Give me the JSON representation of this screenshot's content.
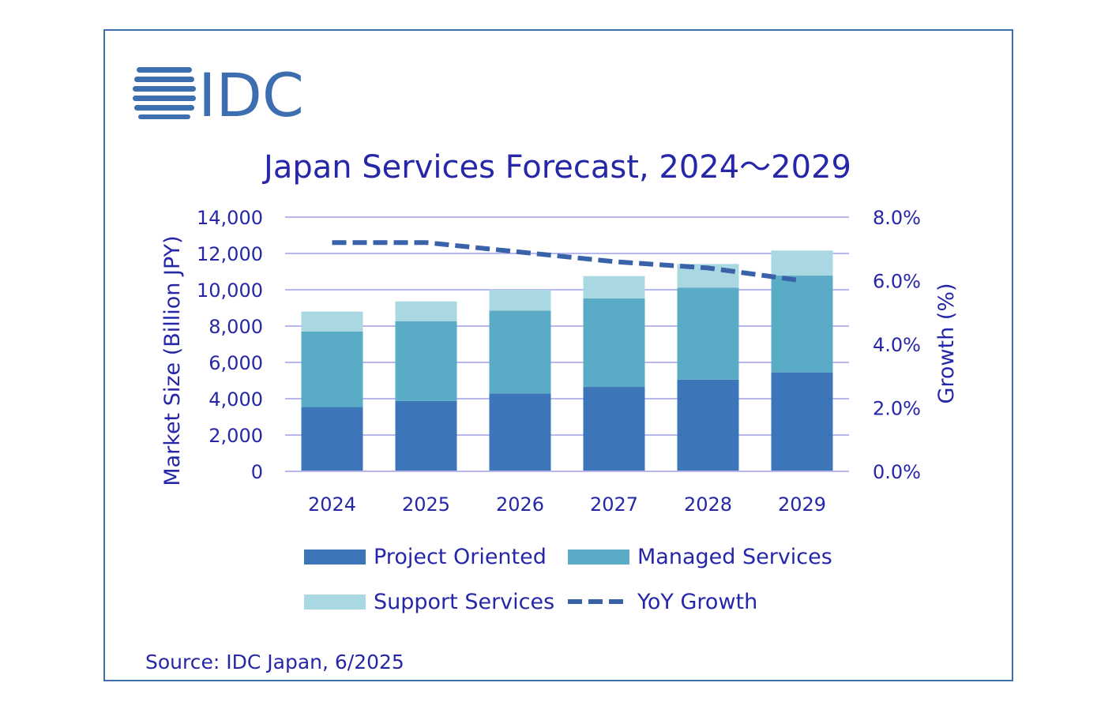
{
  "logo": {
    "text": "IDC"
  },
  "source": "Source: IDC Japan, 6/2025",
  "colors": {
    "project": "#3d76b8",
    "managed": "#5aabc6",
    "support": "#a9d8e2",
    "growth": "#3a62a8",
    "grid": "#b8b8ec",
    "text": "#2626a8",
    "frame": "#3d6fb0"
  },
  "chart_data": {
    "type": "bar",
    "stacked": true,
    "title": "Japan Services Forecast, 2024～2029",
    "xlabel": "",
    "ylabel": "Market Size (Billion JPY)",
    "y2label": "Growth (%)",
    "categories": [
      "2024",
      "2025",
      "2026",
      "2027",
      "2028",
      "2029"
    ],
    "ylim": [
      0,
      14000
    ],
    "y2lim": [
      0,
      8
    ],
    "yticks": [
      0,
      2000,
      4000,
      6000,
      8000,
      10000,
      12000,
      14000
    ],
    "ytick_labels": [
      "0",
      "2,000",
      "4,000",
      "6,000",
      "8,000",
      "10,000",
      "12,000",
      "14,000"
    ],
    "y2ticks": [
      0,
      2,
      4,
      6,
      8
    ],
    "y2tick_labels": [
      "0.0%",
      "2.0%",
      "4.0%",
      "6.0%",
      "8.0%"
    ],
    "grid": true,
    "series": [
      {
        "name": "Project Oriented",
        "axis": "left",
        "kind": "bar",
        "values": [
          3550,
          3880,
          4280,
          4650,
          5050,
          5450
        ]
      },
      {
        "name": "Managed Services",
        "axis": "left",
        "kind": "bar",
        "values": [
          4150,
          4380,
          4570,
          4880,
          5070,
          5330
        ]
      },
      {
        "name": "Support Services",
        "axis": "left",
        "kind": "bar",
        "values": [
          1100,
          1100,
          1150,
          1220,
          1300,
          1380
        ]
      },
      {
        "name": "YoY Growth",
        "axis": "right",
        "kind": "line",
        "style": "dashed",
        "values": [
          7.2,
          7.2,
          6.9,
          6.6,
          6.4,
          6.0
        ]
      }
    ]
  }
}
